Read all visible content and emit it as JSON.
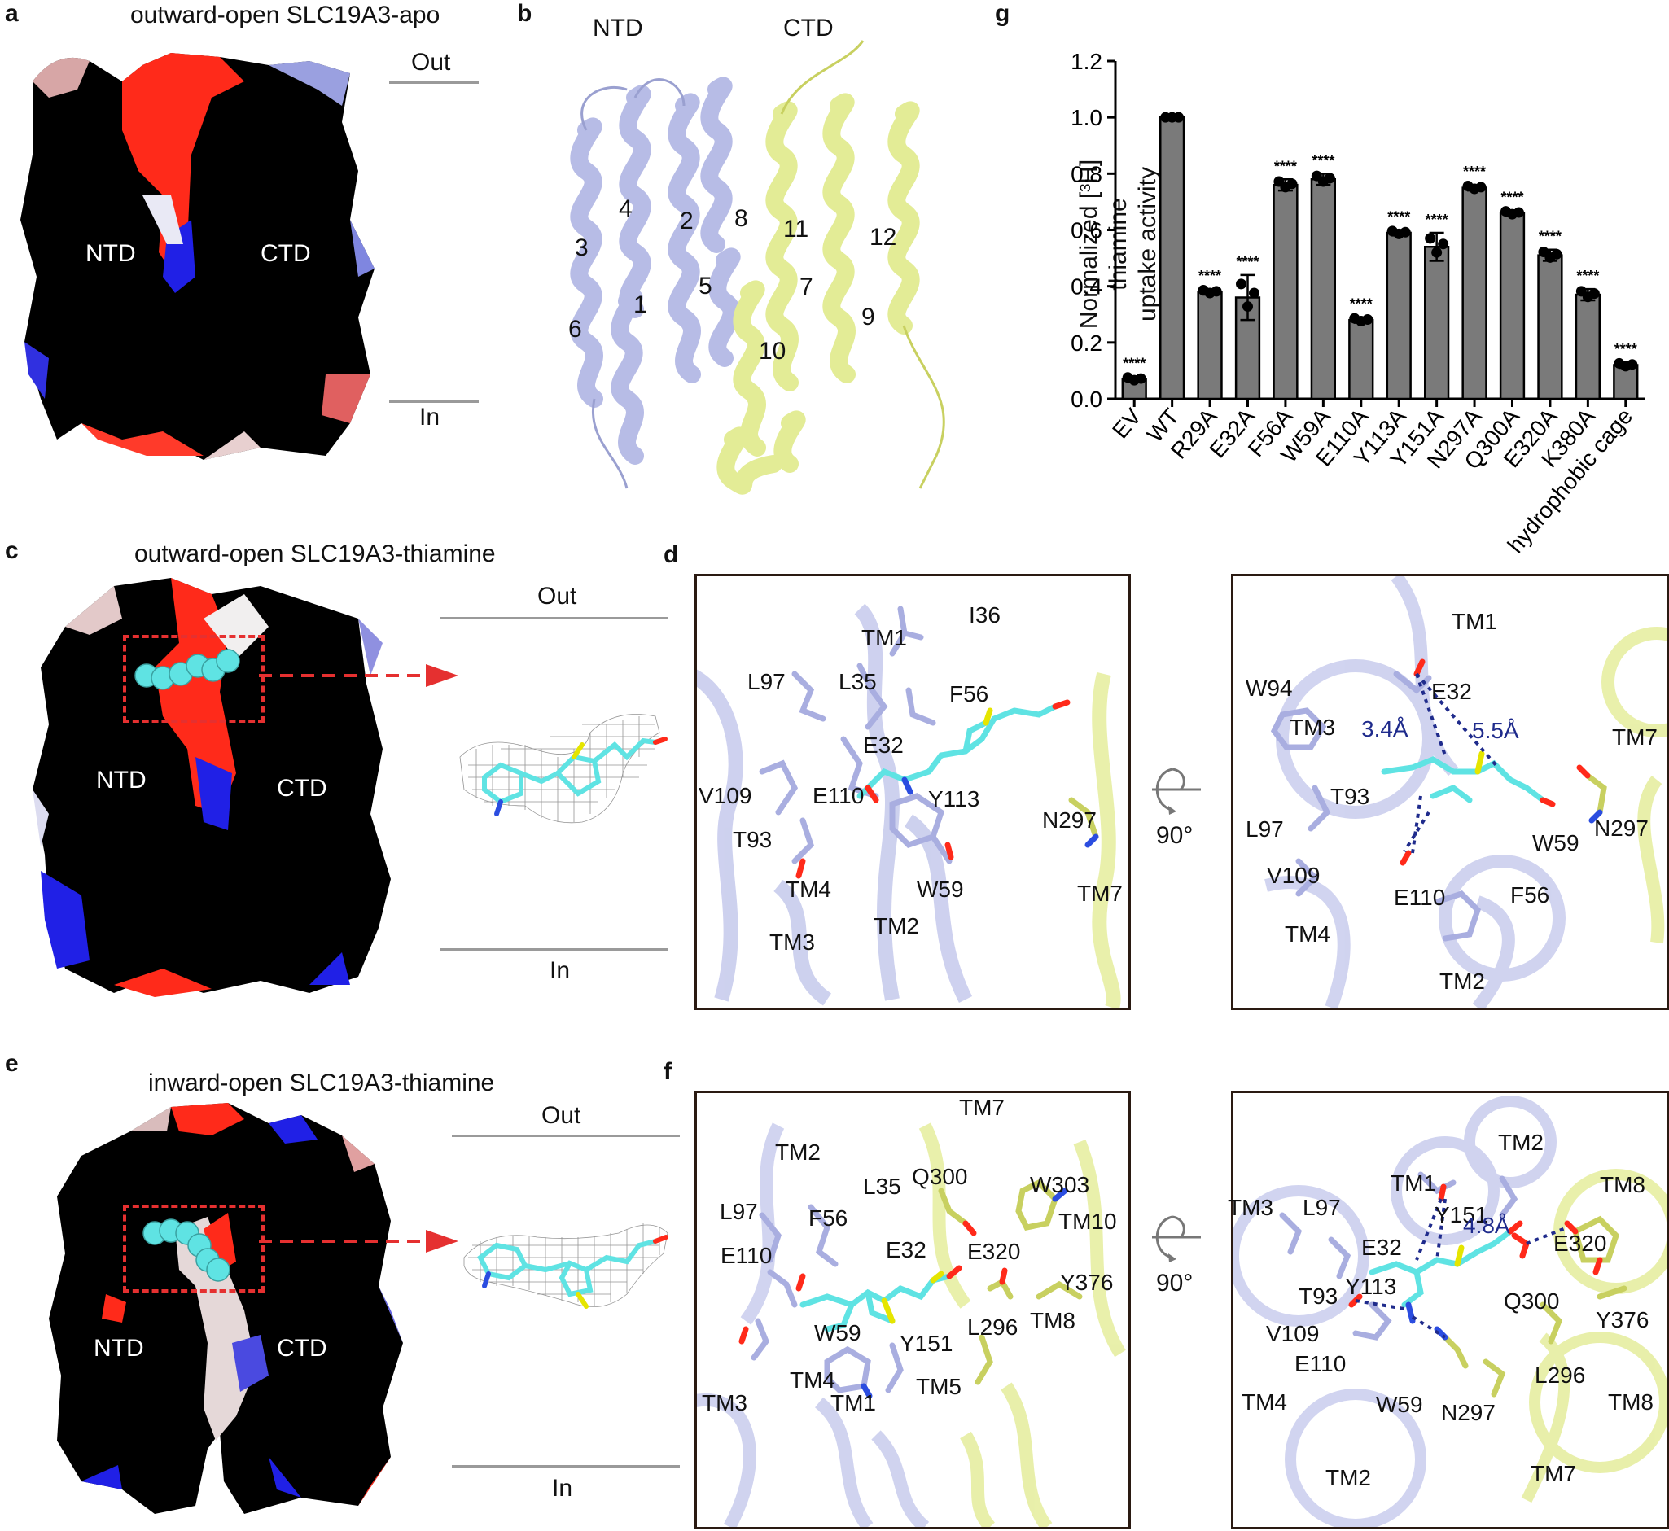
{
  "panel_a": {
    "letter": "a",
    "title": "outward-open  SLC19A3-apo",
    "label_out": "Out",
    "label_in": "In",
    "label_ntd": "NTD",
    "label_ctd": "CTD"
  },
  "panel_b": {
    "letter": "b",
    "label_ntd": "NTD",
    "label_ctd": "CTD",
    "helix_numbers": [
      "4",
      "2",
      "3",
      "1",
      "5",
      "6",
      "8",
      "11",
      "7",
      "12",
      "9",
      "10"
    ]
  },
  "panel_c": {
    "letter": "c",
    "title": "outward-open  SLC19A3-thiamine",
    "label_out": "Out",
    "label_in": "In",
    "label_ntd": "NTD",
    "label_ctd": "CTD"
  },
  "panel_d": {
    "letter": "d",
    "left_labels": [
      "TM1",
      "I36",
      "L97",
      "L35",
      "F56",
      "E32",
      "V109",
      "E110",
      "Y113",
      "N297",
      "T93",
      "TM4",
      "W59",
      "TM7",
      "TM3",
      "TM2"
    ],
    "rotation": "90°",
    "right_labels": [
      "TM1",
      "W94",
      "E32",
      "TM3",
      "TM7",
      "T93",
      "N297",
      "L97",
      "W59",
      "V109",
      "E110",
      "F56",
      "TM4",
      "TM2"
    ],
    "dist1": "3.4Å",
    "dist2": "5.5Å"
  },
  "panel_e": {
    "letter": "e",
    "title": "inward-open  SLC19A3-thiamine",
    "label_out": "Out",
    "label_in": "In",
    "label_ntd": "NTD",
    "label_ctd": "CTD"
  },
  "panel_f": {
    "letter": "f",
    "left_labels": [
      "TM7",
      "TM2",
      "Q300",
      "W303",
      "L35",
      "L97",
      "F56",
      "TM10",
      "E32",
      "E320",
      "E110",
      "Y376",
      "TM8",
      "L296",
      "W59",
      "Y151",
      "TM4",
      "TM3",
      "TM1",
      "TM5"
    ],
    "rotation": "90°",
    "right_labels": [
      "TM2",
      "TM1",
      "TM8",
      "TM3",
      "L97",
      "Y151",
      "E320",
      "E32",
      "Y113",
      "T93",
      "Q300",
      "Y376",
      "V109",
      "E110",
      "L296",
      "TM4",
      "W59",
      "N297",
      "TM8",
      "TM2",
      "TM7"
    ],
    "dist": "4.8Å"
  },
  "panel_g": {
    "letter": "g",
    "ylabel_line1": "Normalized [³H] thiamine",
    "ylabel_line2": "uptake activity",
    "significance": "****"
  },
  "chart_data": {
    "type": "bar",
    "categories": [
      "EV",
      "WT",
      "R29A",
      "E32A",
      "F56A",
      "W59A",
      "E110A",
      "Y113A",
      "Y151A",
      "N297A",
      "Q300A",
      "E320A",
      "K380A",
      "hydrophobic cage"
    ],
    "values": [
      0.07,
      1.0,
      0.38,
      0.36,
      0.76,
      0.78,
      0.28,
      0.59,
      0.54,
      0.75,
      0.66,
      0.51,
      0.37,
      0.12
    ],
    "errors": [
      0.01,
      0.0,
      0.01,
      0.08,
      0.02,
      0.02,
      0.01,
      0.01,
      0.05,
      0.01,
      0.01,
      0.02,
      0.02,
      0.01
    ],
    "significant": [
      true,
      false,
      true,
      true,
      true,
      true,
      true,
      true,
      true,
      true,
      true,
      true,
      true,
      true
    ],
    "ylim": [
      0,
      1.2
    ],
    "yticks": [
      "0.0",
      "0.2",
      "0.4",
      "0.6",
      "0.8",
      "1.0",
      "1.2"
    ],
    "grid": false,
    "bar_color": "#7a7a7a"
  },
  "colors": {
    "ntd": "#b7bce6",
    "ctd": "#e3ec96",
    "ligand": "#5fe3e3",
    "negative": "#ff2a1a",
    "positive": "#2020e6",
    "box": "#2a1a12",
    "dashed_box": "#e53030",
    "distance": "#1f2b8c"
  }
}
